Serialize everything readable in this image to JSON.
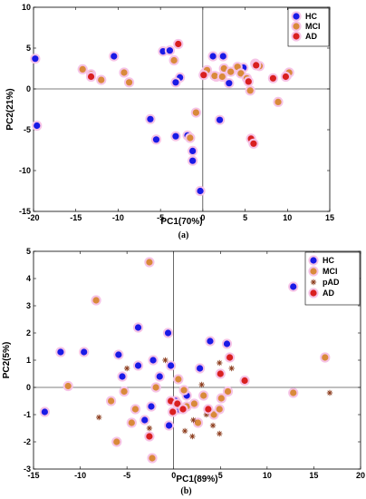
{
  "colors": {
    "HC": "#1a1ae6",
    "MCI": "#d98a3a",
    "pAD": "#8b3a1a",
    "AD": "#d92020",
    "halo": "#f6c3e6"
  },
  "chart_data": [
    {
      "type": "scatter",
      "caption": "(a)",
      "xlabel": "PC1(70%)",
      "ylabel": "PC2(21%)",
      "xlim": [
        -20,
        15
      ],
      "ylim": [
        -15,
        10
      ],
      "xticks": [
        -20,
        -15,
        -10,
        -5,
        0,
        5,
        10,
        15
      ],
      "yticks": [
        -15,
        -10,
        -5,
        0,
        5,
        10
      ],
      "legend_position": "top-right",
      "series": [
        {
          "name": "HC",
          "marker": "dot",
          "points": [
            [
              -19.8,
              3.7
            ],
            [
              -19.6,
              -4.5
            ],
            [
              -10.5,
              4.0
            ],
            [
              -6.2,
              -3.7
            ],
            [
              -5.5,
              -6.2
            ],
            [
              -4.7,
              4.6
            ],
            [
              -3.9,
              4.7
            ],
            [
              -3.2,
              -5.8
            ],
            [
              -2.7,
              1.4
            ],
            [
              -3.2,
              0.8
            ],
            [
              -1.8,
              -5.7
            ],
            [
              -1.2,
              -7.6
            ],
            [
              -1.2,
              -8.8
            ],
            [
              -0.3,
              -12.5
            ],
            [
              1.2,
              4.0
            ],
            [
              1.6,
              1.5
            ],
            [
              2.0,
              -3.8
            ],
            [
              2.4,
              4.0
            ],
            [
              3.1,
              0.7
            ],
            [
              4.8,
              2.6
            ]
          ]
        },
        {
          "name": "MCI",
          "marker": "dot",
          "points": [
            [
              -14.2,
              2.4
            ],
            [
              -13.2,
              1.8
            ],
            [
              -12.0,
              1.1
            ],
            [
              -9.3,
              2.0
            ],
            [
              -8.7,
              0.8
            ],
            [
              -3.4,
              3.5
            ],
            [
              -0.8,
              -2.9
            ],
            [
              -1.5,
              -6.0
            ],
            [
              0.2,
              1.9
            ],
            [
              0.5,
              2.3
            ],
            [
              1.4,
              1.6
            ],
            [
              2.3,
              1.5
            ],
            [
              2.5,
              2.5
            ],
            [
              3.3,
              2.1
            ],
            [
              4.1,
              2.7
            ],
            [
              4.5,
              1.9
            ],
            [
              5.2,
              1.3
            ],
            [
              5.6,
              -0.2
            ],
            [
              6.2,
              3.1
            ],
            [
              6.7,
              2.8
            ],
            [
              8.9,
              -1.6
            ],
            [
              9.9,
              1.6
            ],
            [
              10.2,
              2.0
            ]
          ]
        },
        {
          "name": "AD",
          "marker": "dot",
          "points": [
            [
              -13.2,
              1.5
            ],
            [
              -2.9,
              5.5
            ],
            [
              0.1,
              1.7
            ],
            [
              5.4,
              0.9
            ],
            [
              5.7,
              -6.1
            ],
            [
              6.0,
              -6.7
            ],
            [
              6.3,
              2.9
            ],
            [
              8.3,
              1.3
            ],
            [
              9.8,
              1.5
            ]
          ]
        }
      ]
    },
    {
      "type": "scatter",
      "caption": "(b)",
      "xlabel": "PC1(89%)",
      "ylabel": "PC2(5%)",
      "xlim": [
        -15,
        20
      ],
      "ylim": [
        -3,
        5
      ],
      "xticks": [
        -15,
        -10,
        -5,
        0,
        5,
        10,
        15,
        20
      ],
      "yticks": [
        -3,
        -2,
        -1,
        0,
        1,
        2,
        3,
        4,
        5
      ],
      "legend_position": "top-right",
      "series": [
        {
          "name": "HC",
          "marker": "dot",
          "points": [
            [
              -13.8,
              -0.9
            ],
            [
              -12.1,
              1.3
            ],
            [
              -9.6,
              1.3
            ],
            [
              -5.9,
              1.2
            ],
            [
              -3.8,
              2.2
            ],
            [
              -5.5,
              0.4
            ],
            [
              -2.2,
              1.0
            ],
            [
              -0.6,
              2.0
            ],
            [
              -0.3,
              0.8
            ],
            [
              -1.5,
              0.4
            ],
            [
              -3.8,
              0.8
            ],
            [
              -2.4,
              -0.7
            ],
            [
              -3.1,
              -1.2
            ],
            [
              -0.5,
              -1.4
            ],
            [
              0.2,
              -0.5
            ],
            [
              0.5,
              -0.8
            ],
            [
              1.4,
              -0.3
            ],
            [
              2.8,
              0.7
            ],
            [
              3.9,
              1.7
            ],
            [
              5.7,
              1.6
            ],
            [
              12.8,
              3.7
            ]
          ]
        },
        {
          "name": "MCI",
          "marker": "dot",
          "points": [
            [
              -11.3,
              0.05
            ],
            [
              -8.3,
              3.2
            ],
            [
              -6.7,
              -0.5
            ],
            [
              -6.1,
              -2.0
            ],
            [
              -5.3,
              -0.15
            ],
            [
              -4.5,
              -1.3
            ],
            [
              -4.1,
              -0.8
            ],
            [
              -2.6,
              4.6
            ],
            [
              -2.3,
              -2.6
            ],
            [
              -1.9,
              0.0
            ],
            [
              0.5,
              0.3
            ],
            [
              1.1,
              -0.1
            ],
            [
              1.4,
              -0.7
            ],
            [
              2.2,
              -0.6
            ],
            [
              2.6,
              -1.3
            ],
            [
              3.2,
              -0.3
            ],
            [
              4.3,
              -1.0
            ],
            [
              5.1,
              -0.4
            ],
            [
              5.8,
              -0.15
            ],
            [
              4.9,
              -0.8
            ],
            [
              12.8,
              -0.2
            ],
            [
              16.2,
              1.1
            ]
          ]
        },
        {
          "name": "pAD",
          "marker": "asterisk",
          "points": [
            [
              -8.0,
              -1.1
            ],
            [
              -5.0,
              0.7
            ],
            [
              -2.6,
              -1.5
            ],
            [
              -0.9,
              1.0
            ],
            [
              1.2,
              -1.6
            ],
            [
              2.1,
              -1.2
            ],
            [
              2.0,
              -1.8
            ],
            [
              3.0,
              0.1
            ],
            [
              3.5,
              -1.0
            ],
            [
              4.2,
              -1.4
            ],
            [
              4.9,
              0.9
            ],
            [
              4.9,
              -1.7
            ],
            [
              6.2,
              0.7
            ],
            [
              16.7,
              -0.2
            ]
          ]
        },
        {
          "name": "AD",
          "marker": "dot",
          "points": [
            [
              -2.6,
              -1.8
            ],
            [
              -0.3,
              -0.5
            ],
            [
              -0.1,
              -0.9
            ],
            [
              0.4,
              -0.6
            ],
            [
              1.0,
              -0.8
            ],
            [
              3.7,
              -0.8
            ],
            [
              5.0,
              0.5
            ],
            [
              6.0,
              1.1
            ],
            [
              7.6,
              0.25
            ]
          ]
        }
      ]
    }
  ]
}
